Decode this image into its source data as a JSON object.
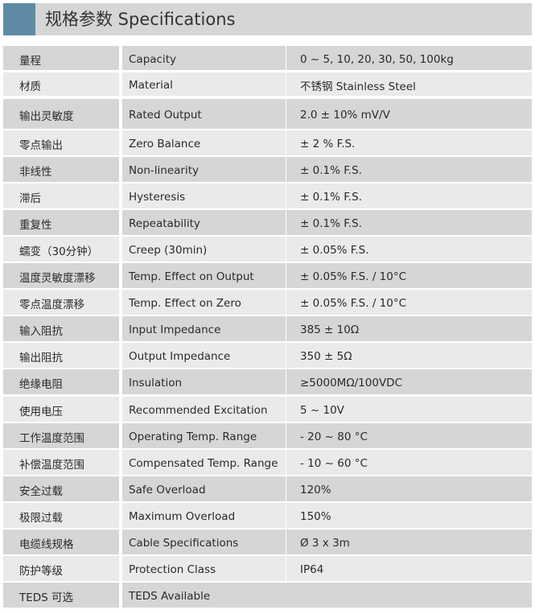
{
  "header": {
    "title": "规格参数 Specifications",
    "accent_color": "#5f8aa6"
  },
  "rows": [
    {
      "cn": "量程",
      "en": "Capacity",
      "value": "0 ~ 5, 10, 20, 30, 50, 100kg"
    },
    {
      "cn": "材质",
      "en": "Material",
      "value": "不锈钢 Stainless Steel"
    },
    {
      "cn": "输出灵敏度",
      "en": "Rated Output",
      "value": "2.0 ± 10% mV/V"
    },
    {
      "cn": "零点输出",
      "en": "Zero Balance",
      "value": "± 2 % F.S."
    },
    {
      "cn": "非线性",
      "en": "Non-linearity",
      "value": "± 0.1% F.S."
    },
    {
      "cn": "滞后",
      "en": "Hysteresis",
      "value": "± 0.1% F.S."
    },
    {
      "cn": "重复性",
      "en": "Repeatability",
      "value": "± 0.1% F.S."
    },
    {
      "cn": "蠕变（30分钟）",
      "en": "Creep (30min)",
      "value": "± 0.05% F.S."
    },
    {
      "cn": "温度灵敏度漂移",
      "en": "Temp. Effect on Output",
      "value": "± 0.05% F.S. / 10°C"
    },
    {
      "cn": "零点温度漂移",
      "en": "Temp. Effect on Zero",
      "value": "± 0.05% F.S. / 10°C"
    },
    {
      "cn": "输入阻抗",
      "en": "Input Impedance",
      "value": "385 ± 10Ω"
    },
    {
      "cn": "输出阻抗",
      "en": "Output Impedance",
      "value": "350 ± 5Ω"
    },
    {
      "cn": "绝缘电阻",
      "en": "Insulation",
      "value": "≥5000MΩ/100VDC"
    },
    {
      "cn": "使用电压",
      "en": "Recommended Excitation",
      "value": "5 ~ 10V"
    },
    {
      "cn": "工作温度范围",
      "en": "Operating Temp. Range",
      "value": "- 20 ~ 80 °C"
    },
    {
      "cn": "补偿温度范围",
      "en": "Compensated Temp. Range",
      "value": "- 10 ~ 60 °C"
    },
    {
      "cn": "安全过载",
      "en": "Safe Overload",
      "value": "120%"
    },
    {
      "cn": "极限过载",
      "en": "Maximum Overload",
      "value": "150%"
    },
    {
      "cn": "电缆线规格",
      "en": "Cable Specifications",
      "value": "Ø 3 x 3m"
    },
    {
      "cn": "防护等级",
      "en": "Protection Class",
      "value": "IP64"
    },
    {
      "cn": "TEDS 可选",
      "en": "TEDS Available"
    }
  ]
}
